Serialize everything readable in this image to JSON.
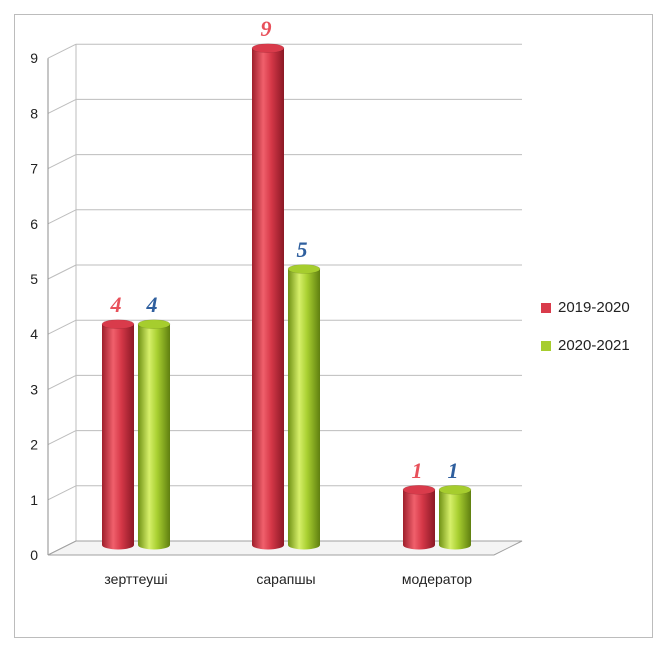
{
  "chart_data": {
    "type": "bar",
    "categories": [
      "зерттеуші",
      "сарапшы",
      "модератор"
    ],
    "series": [
      {
        "name": "2019-2020",
        "values": [
          4,
          9,
          1
        ],
        "color": "#d93b4b",
        "label_color": "#e8505a"
      },
      {
        "name": "2020-2021",
        "values": [
          4,
          5,
          1
        ],
        "color": "#a6cd2e",
        "label_color": "#2f5f9e"
      }
    ],
    "ylim": [
      0,
      9
    ],
    "yticks": [
      "0",
      "1",
      "2",
      "3",
      "4",
      "5",
      "6",
      "7",
      "8",
      "9"
    ],
    "grid": true,
    "legend": "right",
    "style": "3d-cylinder"
  }
}
